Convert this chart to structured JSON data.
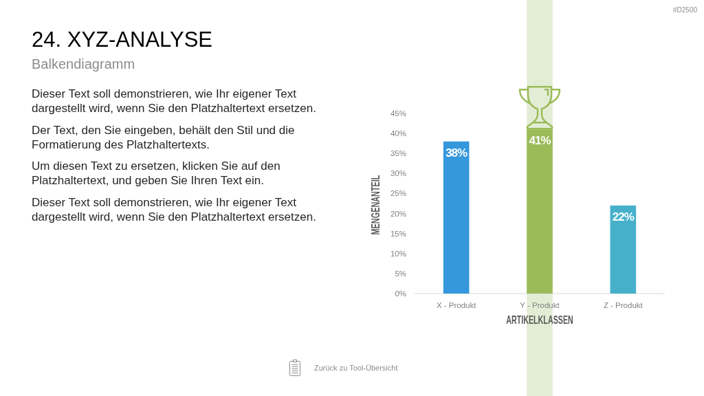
{
  "chart_data": {
    "type": "bar",
    "title": "24. XYZ-ANALYSE",
    "subtitle": "Balkendiagramm",
    "xlabel": "ARTIKELKLASSEN",
    "ylabel": "MENGENANTEIL",
    "categories": [
      "X - Produkt",
      "Y - Produkt",
      "Z - Produkt"
    ],
    "values": [
      38,
      41,
      22
    ],
    "colors": [
      "#3598dc",
      "#9bbb59",
      "#46b0cb"
    ],
    "value_labels": [
      "38%",
      "41%",
      "22%"
    ],
    "ylim": [
      0,
      45
    ],
    "yticks": [
      {
        "value": 0,
        "label": "0%"
      },
      {
        "value": 5,
        "label": "5%"
      },
      {
        "value": 10,
        "label": "10%"
      },
      {
        "value": 15,
        "label": "15%"
      },
      {
        "value": 20,
        "label": "20%"
      },
      {
        "value": 25,
        "label": "25%"
      },
      {
        "value": 30,
        "label": "30%"
      },
      {
        "value": 35,
        "label": "35%"
      },
      {
        "value": 40,
        "label": "40%"
      },
      {
        "value": 45,
        "label": "45%"
      }
    ],
    "bands": [
      {
        "axis": "x",
        "from": "Y - Produkt",
        "to": "Y - Produkt",
        "color": "#e3edd6"
      }
    ],
    "annotations": [
      "Dieser Text soll demonstrieren, wie Ihr eigener Text dargestellt wird, wenn Sie den Platzhaltertext ersetzen.",
      "Der Text, den Sie eingeben, behält den Stil und die Formatierung des Platzhaltertexts.",
      "Um diesen Text zu ersetzen, klicken Sie auf den Platzhaltertext, und geben Sie Ihren Text ein.",
      "Dieser Text soll demonstrieren, wie Ihr eigener Text dargestellt wird, wenn Sie den Platzhaltertext ersetzen.",
      "#D2500",
      "Zurück zu Tool-Übersicht"
    ]
  }
}
